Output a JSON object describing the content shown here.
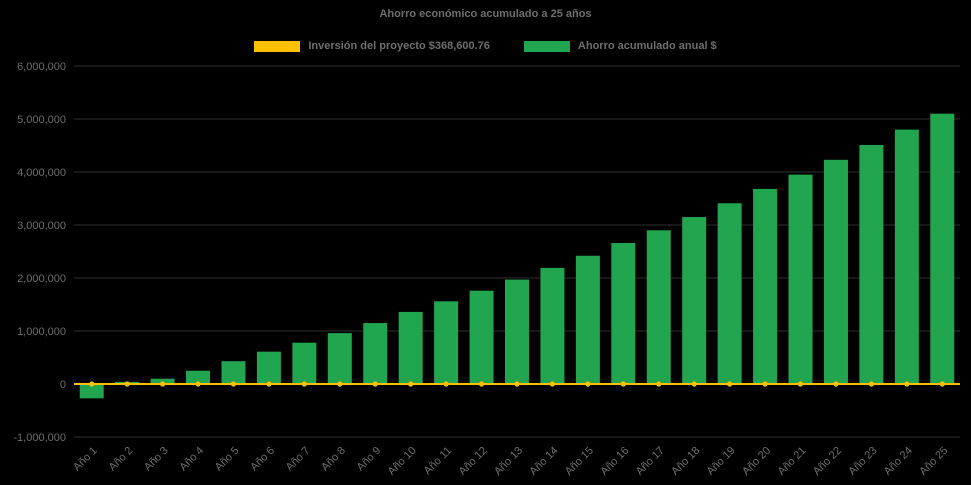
{
  "chart_data": {
    "type": "bar",
    "title": "Ahorro económico acumulado a 25 años",
    "xlabel": "",
    "ylabel": "",
    "ylim": [
      -1000000,
      6000000
    ],
    "ytick_step": 1000000,
    "grid": true,
    "legend_position": "top",
    "investment_amount": 368600.76,
    "colors": {
      "background": "#000000",
      "text": "#6e6e6e",
      "grid": "#303030",
      "bar_green": "#21A64F",
      "line_gold": "#FFC000"
    },
    "categories": [
      "Año 1",
      "Año 2",
      "Año 3",
      "Año 4",
      "Año 5",
      "Año 6",
      "Año 7",
      "Año 8",
      "Año 9",
      "Año 10",
      "Año 11",
      "Año 12",
      "Año 13",
      "Año 14",
      "Año 15",
      "Año 16",
      "Año 17",
      "Año 18",
      "Año 19",
      "Año 20",
      "Año 21",
      "Año 22",
      "Año 23",
      "Año 24",
      "Año 25"
    ],
    "series": [
      {
        "name": "Inversión del proyecto $368,600.76",
        "type": "line",
        "color": "#FFC000",
        "marker": "circle",
        "constant_value": 0
      },
      {
        "name": "Ahorro acumulado anual $",
        "type": "bar",
        "color": "#21A64F",
        "values": [
          -270000,
          40000,
          100000,
          250000,
          430000,
          610000,
          780000,
          960000,
          1150000,
          1360000,
          1560000,
          1760000,
          1970000,
          2190000,
          2420000,
          2660000,
          2900000,
          3150000,
          3410000,
          3680000,
          3950000,
          4230000,
          4510000,
          4800000,
          5100000
        ]
      }
    ]
  }
}
